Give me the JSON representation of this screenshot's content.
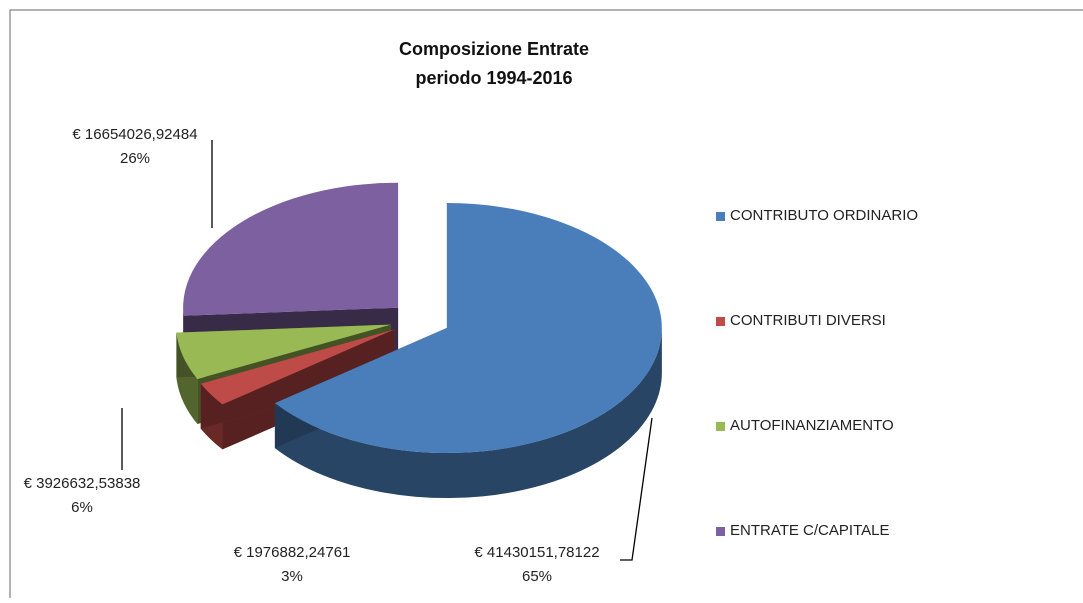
{
  "chart_data": {
    "type": "pie3d",
    "title": [
      "Composizione Entrate",
      "periodo 1994-2016"
    ],
    "categories": [
      "CONTRIBUTO ORDINARIO",
      "CONTRIBUTI DIVERSI",
      "AUTOFINANZIAMENTO",
      "ENTRATE C/CAPITALE"
    ],
    "values": [
      41430151.78122,
      1976882.24761,
      3926632.53838,
      16654026.92484
    ],
    "value_labels": [
      "€ 41430151,78122",
      "€ 1976882,24761",
      "€ 3926632,53838",
      "€ 16654026,92484"
    ],
    "percent_labels": [
      "65%",
      "3%",
      "6%",
      "26%"
    ],
    "colors": [
      "#4a7ebb",
      "#be4b48",
      "#98b954",
      "#7d60a0"
    ],
    "legend": "right"
  }
}
